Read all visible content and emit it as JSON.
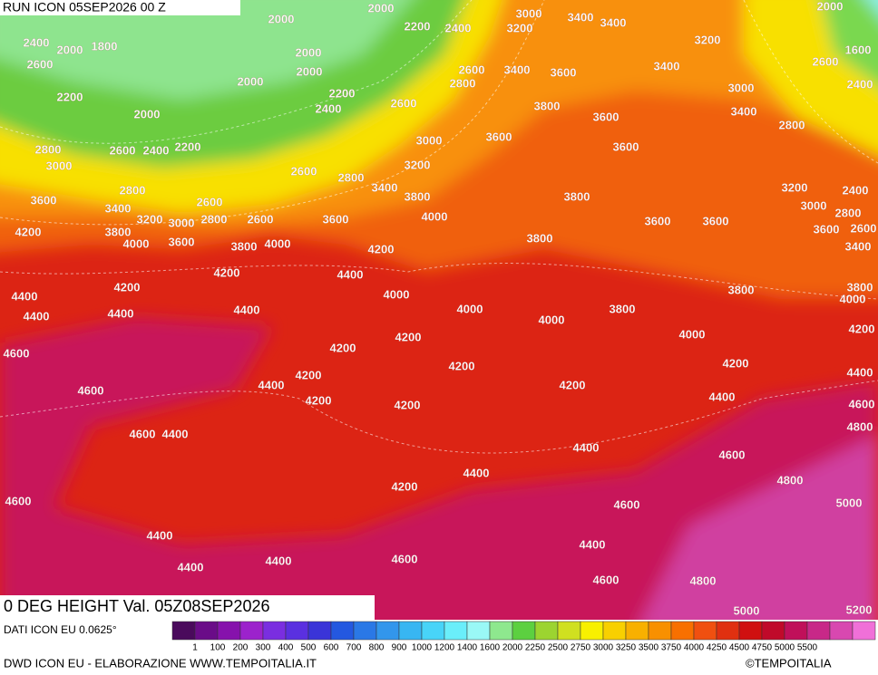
{
  "header": {
    "run": "RUN ICON 05SEP2026 00 Z"
  },
  "map": {
    "contour_labels": [
      2000,
      2000,
      2200,
      2400,
      3000,
      3400,
      3400,
      2000,
      3200,
      2400,
      2000,
      1800,
      2000,
      3200,
      1600,
      2600,
      2000,
      2600,
      3400,
      3600,
      3400,
      2600,
      2000,
      2800,
      2400,
      2200,
      2200,
      2600,
      3000,
      2400,
      3800,
      3400,
      2000,
      3600,
      2800,
      3600,
      3000,
      2600,
      2400,
      2200,
      3600,
      2800,
      3000,
      3200,
      2600,
      2800,
      3400,
      3200,
      2400,
      2800,
      3800,
      3800,
      3600,
      2600,
      3000,
      3400,
      2800,
      4000,
      3200,
      3000,
      2800,
      2600,
      3600,
      3600,
      3600,
      2600,
      4200,
      3800,
      3600,
      3800,
      4000,
      3600,
      3800,
      4000,
      3400,
      4200,
      4200,
      4400,
      3800,
      4200,
      3800,
      4400,
      4000,
      4000,
      4400,
      4400,
      4400,
      4000,
      3800,
      4000,
      4200,
      4200,
      4000,
      4200,
      4600,
      4200,
      4200,
      4400,
      4200,
      4400,
      4200,
      4600,
      4200,
      4400,
      4600,
      4200,
      4800,
      4600,
      4400,
      4400,
      4600,
      4400,
      4800,
      4200,
      4600,
      4600,
      5000,
      4400,
      4400,
      4600,
      4400,
      4400,
      4600,
      4800,
      5000,
      5200
    ]
  },
  "footer": {
    "title": "0 DEG HEIGHT Val. 05Z08SEP2026",
    "source": "DATI ICON EU 0.0625°",
    "credit": "DWD ICON EU - ELABORAZIONE WWW.TEMPOITALIA.IT",
    "copyright": "©TEMPOITALIA"
  },
  "legend": {
    "colors": [
      "#4a0a5c",
      "#6a0c88",
      "#8612ac",
      "#9c22cc",
      "#7a2ee0",
      "#5a30e0",
      "#3a34d8",
      "#2458e0",
      "#2a78e6",
      "#3296ec",
      "#38b6f2",
      "#48d4f8",
      "#6aeefa",
      "#9af8f6",
      "#8ee88e",
      "#5cd040",
      "#9cd430",
      "#d0e020",
      "#f8f000",
      "#f8d000",
      "#f8b000",
      "#f89000",
      "#f87000",
      "#f05010",
      "#e03010",
      "#d01010",
      "#c00a2a",
      "#c0105a",
      "#c82888",
      "#d848b0",
      "#f070d8"
    ],
    "labels": [
      1,
      100,
      200,
      300,
      400,
      500,
      600,
      700,
      800,
      900,
      1000,
      1200,
      1400,
      1600,
      2000,
      2250,
      2500,
      2750,
      3000,
      3250,
      3500,
      3750,
      4000,
      4250,
      4500,
      4750,
      5000,
      5500
    ]
  }
}
